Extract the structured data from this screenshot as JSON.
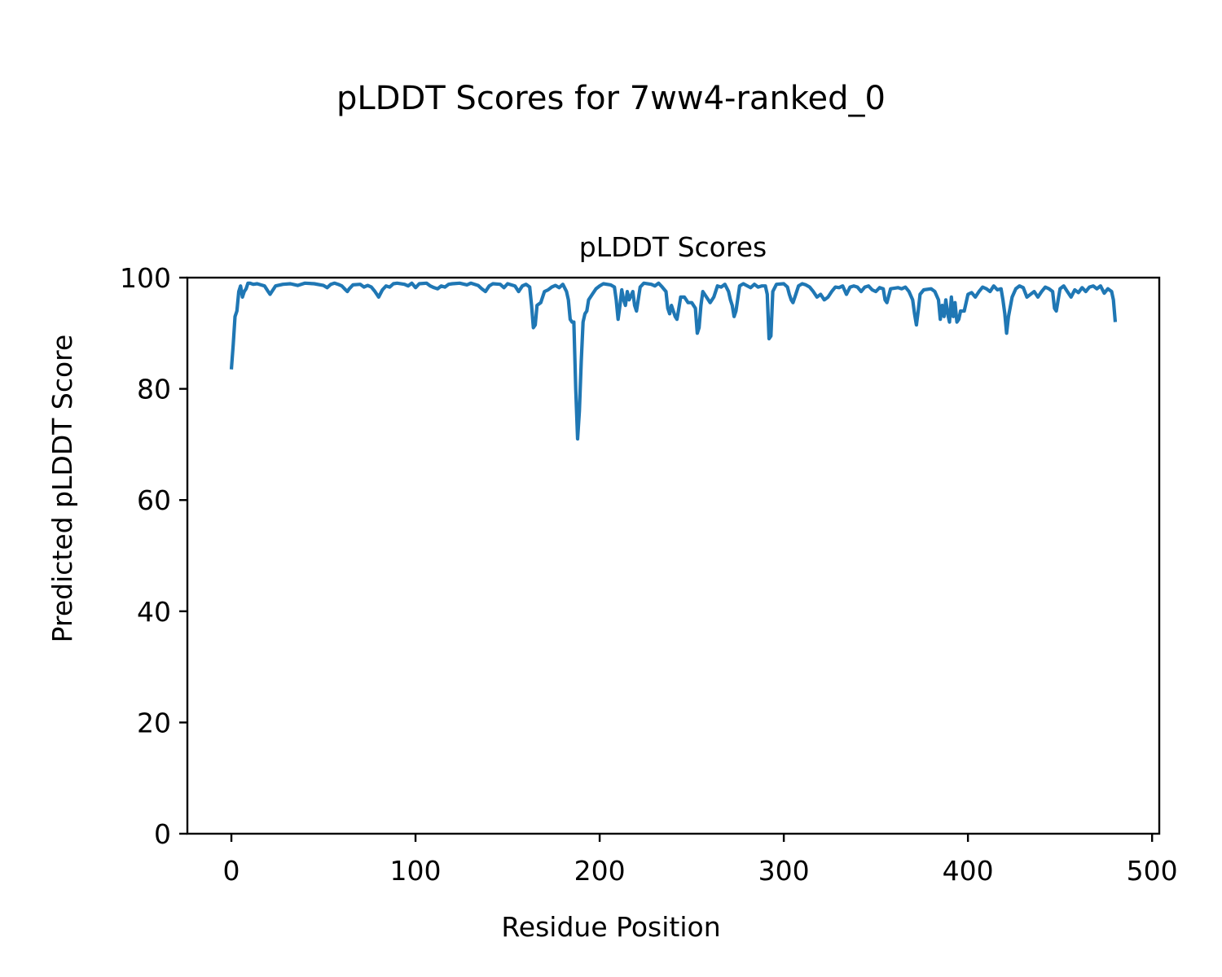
{
  "chart_data": {
    "type": "line",
    "suptitle": "pLDDT Scores for 7ww4-ranked_0",
    "title": "pLDDT Scores",
    "xlabel": "Residue Position",
    "ylabel": "Predicted pLDDT Score",
    "xlim": [
      -23.9,
      503.9
    ],
    "ylim": [
      0,
      100
    ],
    "xticks": [
      0,
      100,
      200,
      300,
      400,
      500
    ],
    "yticks": [
      0,
      20,
      40,
      60,
      80,
      100
    ],
    "grid": false,
    "legend": "none",
    "series": [
      {
        "color": "#1f77b4",
        "points": [
          [
            0,
            83.5
          ],
          [
            1,
            88
          ],
          [
            2,
            93
          ],
          [
            3,
            94
          ],
          [
            4,
            97.5
          ],
          [
            5,
            98.5
          ],
          [
            6,
            96.5
          ],
          [
            7,
            97.5
          ],
          [
            8,
            98
          ],
          [
            9,
            99
          ],
          [
            10,
            99
          ],
          [
            12,
            98.8
          ],
          [
            14,
            98.9
          ],
          [
            16,
            98.7
          ],
          [
            18,
            98.5
          ],
          [
            20,
            97.5
          ],
          [
            21,
            97
          ],
          [
            22,
            97.5
          ],
          [
            24,
            98.5
          ],
          [
            28,
            98.8
          ],
          [
            32,
            98.9
          ],
          [
            36,
            98.6
          ],
          [
            40,
            99
          ],
          [
            45,
            98.9
          ],
          [
            50,
            98.6
          ],
          [
            52,
            98.2
          ],
          [
            54,
            98.8
          ],
          [
            56,
            99
          ],
          [
            58,
            98.8
          ],
          [
            60,
            98.5
          ],
          [
            62,
            97.8
          ],
          [
            63,
            97.5
          ],
          [
            64,
            98
          ],
          [
            66,
            98.7
          ],
          [
            70,
            98.8
          ],
          [
            72,
            98.3
          ],
          [
            74,
            98.6
          ],
          [
            76,
            98.3
          ],
          [
            78,
            97.5
          ],
          [
            80,
            96.5
          ],
          [
            82,
            97.8
          ],
          [
            84,
            98.5
          ],
          [
            86,
            98.3
          ],
          [
            88,
            98.9
          ],
          [
            90,
            99
          ],
          [
            94,
            98.8
          ],
          [
            96,
            98.5
          ],
          [
            98,
            99
          ],
          [
            100,
            98.2
          ],
          [
            102,
            98.9
          ],
          [
            106,
            99
          ],
          [
            108,
            98.5
          ],
          [
            110,
            98.2
          ],
          [
            112,
            98
          ],
          [
            114,
            98.5
          ],
          [
            116,
            98.3
          ],
          [
            118,
            98.8
          ],
          [
            120,
            98.9
          ],
          [
            124,
            99
          ],
          [
            128,
            98.7
          ],
          [
            130,
            99
          ],
          [
            134,
            98.6
          ],
          [
            136,
            98
          ],
          [
            138,
            97.5
          ],
          [
            140,
            98.5
          ],
          [
            142,
            98.9
          ],
          [
            146,
            98.8
          ],
          [
            148,
            98.2
          ],
          [
            150,
            98.9
          ],
          [
            154,
            98.5
          ],
          [
            156,
            97.5
          ],
          [
            158,
            98.5
          ],
          [
            160,
            98.8
          ],
          [
            162,
            98.3
          ],
          [
            163,
            95
          ],
          [
            164,
            91
          ],
          [
            165,
            91.5
          ],
          [
            166,
            95
          ],
          [
            168,
            95.5
          ],
          [
            170,
            97.5
          ],
          [
            172,
            97.8
          ],
          [
            174,
            98.3
          ],
          [
            176,
            98.6
          ],
          [
            178,
            98.2
          ],
          [
            180,
            98.8
          ],
          [
            182,
            97.5
          ],
          [
            183,
            96
          ],
          [
            184,
            92.5
          ],
          [
            185,
            92
          ],
          [
            186,
            92
          ],
          [
            187,
            80
          ],
          [
            188,
            71
          ],
          [
            189,
            76
          ],
          [
            190,
            85
          ],
          [
            191,
            92
          ],
          [
            192,
            93.5
          ],
          [
            193,
            94
          ],
          [
            194,
            96
          ],
          [
            196,
            97
          ],
          [
            198,
            98
          ],
          [
            200,
            98.5
          ],
          [
            202,
            98.9
          ],
          [
            206,
            98.7
          ],
          [
            208,
            98.3
          ],
          [
            209,
            96
          ],
          [
            210,
            92.5
          ],
          [
            211,
            95
          ],
          [
            212,
            97.8
          ],
          [
            213,
            96
          ],
          [
            214,
            95
          ],
          [
            215,
            97.5
          ],
          [
            216,
            96
          ],
          [
            218,
            97.5
          ],
          [
            219,
            95
          ],
          [
            220,
            94
          ],
          [
            222,
            98.3
          ],
          [
            224,
            99
          ],
          [
            228,
            98.8
          ],
          [
            230,
            98.5
          ],
          [
            232,
            99
          ],
          [
            234,
            98.3
          ],
          [
            236,
            97.5
          ],
          [
            237,
            94.5
          ],
          [
            238,
            93.5
          ],
          [
            239,
            95
          ],
          [
            240,
            94
          ],
          [
            241,
            93
          ],
          [
            242,
            92.5
          ],
          [
            243,
            94.5
          ],
          [
            244,
            96.5
          ],
          [
            246,
            96.5
          ],
          [
            248,
            95.5
          ],
          [
            250,
            95.5
          ],
          [
            252,
            94.5
          ],
          [
            253,
            90
          ],
          [
            254,
            91
          ],
          [
            255,
            95
          ],
          [
            256,
            97.5
          ],
          [
            258,
            96.5
          ],
          [
            260,
            95.5
          ],
          [
            262,
            96.5
          ],
          [
            264,
            98.5
          ],
          [
            266,
            98.3
          ],
          [
            268,
            98.8
          ],
          [
            270,
            97.5
          ],
          [
            271,
            96
          ],
          [
            272,
            95
          ],
          [
            273,
            93
          ],
          [
            274,
            94
          ],
          [
            276,
            98.5
          ],
          [
            278,
            98.9
          ],
          [
            282,
            98.2
          ],
          [
            284,
            98.8
          ],
          [
            286,
            98.3
          ],
          [
            288,
            98.5
          ],
          [
            290,
            98.5
          ],
          [
            291,
            97
          ],
          [
            292,
            89
          ],
          [
            293,
            89.5
          ],
          [
            294,
            97.5
          ],
          [
            296,
            98.8
          ],
          [
            300,
            98.9
          ],
          [
            302,
            98.3
          ],
          [
            303,
            97
          ],
          [
            304,
            96
          ],
          [
            305,
            95.5
          ],
          [
            306,
            96.5
          ],
          [
            308,
            98.5
          ],
          [
            310,
            98.9
          ],
          [
            312,
            98.7
          ],
          [
            314,
            98.3
          ],
          [
            316,
            97.5
          ],
          [
            318,
            96.5
          ],
          [
            320,
            97
          ],
          [
            322,
            96
          ],
          [
            324,
            96.5
          ],
          [
            326,
            97.5
          ],
          [
            328,
            98.3
          ],
          [
            330,
            98.2
          ],
          [
            332,
            98.5
          ],
          [
            334,
            97
          ],
          [
            336,
            98.3
          ],
          [
            338,
            98.5
          ],
          [
            340,
            98.3
          ],
          [
            342,
            97.5
          ],
          [
            344,
            98.3
          ],
          [
            346,
            98.5
          ],
          [
            348,
            97.8
          ],
          [
            350,
            97.5
          ],
          [
            352,
            98.2
          ],
          [
            354,
            98
          ],
          [
            355,
            96
          ],
          [
            356,
            95.5
          ],
          [
            358,
            98
          ],
          [
            362,
            98.2
          ],
          [
            364,
            98
          ],
          [
            366,
            98.3
          ],
          [
            368,
            97.5
          ],
          [
            370,
            96
          ],
          [
            371,
            93.5
          ],
          [
            372,
            91.5
          ],
          [
            373,
            94
          ],
          [
            374,
            97
          ],
          [
            376,
            97.8
          ],
          [
            380,
            98
          ],
          [
            382,
            97.5
          ],
          [
            384,
            96
          ],
          [
            385,
            92.5
          ],
          [
            386,
            95
          ],
          [
            387,
            93
          ],
          [
            388,
            96
          ],
          [
            389,
            93.5
          ],
          [
            390,
            92
          ],
          [
            391,
            96.5
          ],
          [
            392,
            93
          ],
          [
            393,
            95.5
          ],
          [
            394,
            92
          ],
          [
            395,
            92.5
          ],
          [
            396,
            94
          ],
          [
            398,
            94
          ],
          [
            400,
            97
          ],
          [
            402,
            97.3
          ],
          [
            404,
            96.5
          ],
          [
            406,
            97.5
          ],
          [
            408,
            98.3
          ],
          [
            410,
            98
          ],
          [
            412,
            97.5
          ],
          [
            414,
            98.5
          ],
          [
            416,
            97.8
          ],
          [
            418,
            98
          ],
          [
            419,
            96
          ],
          [
            420,
            93.5
          ],
          [
            421,
            90
          ],
          [
            422,
            93
          ],
          [
            424,
            96.5
          ],
          [
            426,
            98
          ],
          [
            428,
            98.5
          ],
          [
            430,
            98.2
          ],
          [
            432,
            96.5
          ],
          [
            434,
            97
          ],
          [
            436,
            97.5
          ],
          [
            438,
            96.5
          ],
          [
            440,
            97.5
          ],
          [
            442,
            98.3
          ],
          [
            444,
            98
          ],
          [
            446,
            97.5
          ],
          [
            447,
            94.5
          ],
          [
            448,
            94
          ],
          [
            449,
            96
          ],
          [
            450,
            98
          ],
          [
            452,
            98.5
          ],
          [
            454,
            97.5
          ],
          [
            456,
            96.5
          ],
          [
            458,
            97.8
          ],
          [
            460,
            97.3
          ],
          [
            462,
            98.2
          ],
          [
            464,
            97.5
          ],
          [
            466,
            98.3
          ],
          [
            468,
            98.5
          ],
          [
            470,
            98
          ],
          [
            472,
            98.5
          ],
          [
            474,
            97.2
          ],
          [
            476,
            98
          ],
          [
            478,
            97.5
          ],
          [
            479,
            96
          ],
          [
            480,
            92
          ]
        ]
      }
    ]
  }
}
